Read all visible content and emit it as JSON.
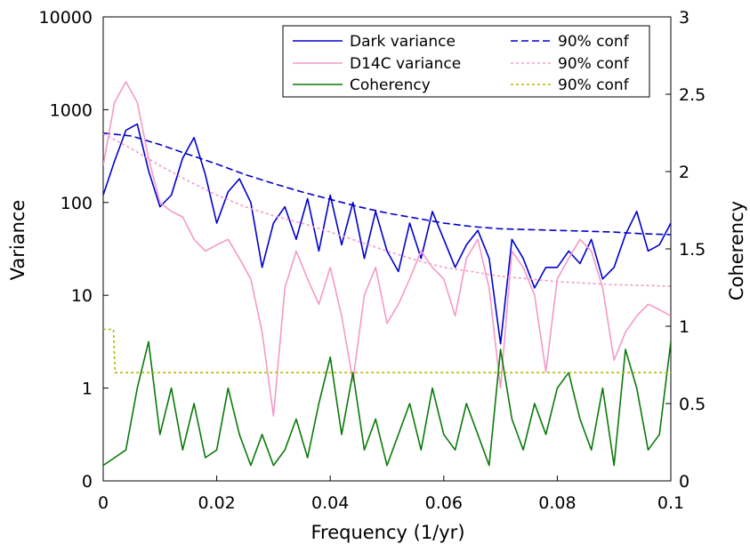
{
  "chart_data": {
    "type": "line",
    "xlabel": "Frequency (1/yr)",
    "ylabel_left": "Variance",
    "ylabel_right": "Coherency",
    "xlim": [
      0,
      0.1
    ],
    "ylim_left": [
      0,
      10000
    ],
    "ylim_right": [
      0,
      3
    ],
    "left_scale": "log (0 shown at bottom)",
    "grid": false,
    "legend_position": "top-right",
    "x_ticks": [
      "0",
      "0.02",
      "0.04",
      "0.06",
      "0.08",
      "0.1"
    ],
    "x_tick_values": [
      0,
      0.02,
      0.04,
      0.06,
      0.08,
      0.1
    ],
    "left_ticks": [
      "0",
      "1",
      "10",
      "100",
      "1000",
      "10000"
    ],
    "right_ticks": [
      "0",
      "0.5",
      "1",
      "1.5",
      "2",
      "2.5",
      "3"
    ],
    "right_tick_values": [
      0,
      0.5,
      1,
      1.5,
      2,
      2.5,
      3
    ],
    "colors": {
      "dark": "#0000cc",
      "d14c": "#f49ac8",
      "coherency": "#0a7a0a",
      "coh_conf": "#b0b800"
    },
    "legend": [
      {
        "label": "Dark variance",
        "style": "solid",
        "color": "#0000cc"
      },
      {
        "label": "90% conf",
        "style": "dashed",
        "color": "#0000cc"
      },
      {
        "label": "D14C variance",
        "style": "solid",
        "color": "#f49ac8"
      },
      {
        "label": "90% conf",
        "style": "dotted",
        "color": "#f49ac8"
      },
      {
        "label": "Coherency",
        "style": "solid",
        "color": "#0a7a0a"
      },
      {
        "label": "90% conf",
        "style": "dotted",
        "color": "#b0b800"
      }
    ],
    "series": [
      {
        "name": "Dark variance",
        "axis": "left",
        "x": [
          0,
          0.002,
          0.004,
          0.006,
          0.008,
          0.01,
          0.012,
          0.014,
          0.016,
          0.018,
          0.02,
          0.022,
          0.024,
          0.026,
          0.028,
          0.03,
          0.032,
          0.034,
          0.036,
          0.038,
          0.04,
          0.042,
          0.044,
          0.046,
          0.048,
          0.05,
          0.052,
          0.054,
          0.056,
          0.058,
          0.06,
          0.062,
          0.064,
          0.066,
          0.068,
          0.07,
          0.072,
          0.074,
          0.076,
          0.078,
          0.08,
          0.082,
          0.084,
          0.086,
          0.088,
          0.09,
          0.092,
          0.094,
          0.096,
          0.098,
          0.1
        ],
        "y": [
          120,
          280,
          600,
          700,
          220,
          90,
          120,
          300,
          500,
          200,
          60,
          130,
          180,
          100,
          20,
          60,
          90,
          40,
          110,
          30,
          120,
          35,
          100,
          25,
          80,
          30,
          18,
          60,
          25,
          80,
          40,
          20,
          35,
          50,
          25,
          3,
          40,
          25,
          12,
          20,
          20,
          30,
          22,
          40,
          15,
          20,
          45,
          80,
          30,
          35,
          60
        ]
      },
      {
        "name": "90% conf",
        "axis": "left",
        "x": [
          0,
          0.005,
          0.01,
          0.015,
          0.02,
          0.025,
          0.03,
          0.035,
          0.04,
          0.045,
          0.05,
          0.055,
          0.06,
          0.065,
          0.07,
          0.075,
          0.08,
          0.085,
          0.09,
          0.095,
          0.1
        ],
        "y": [
          560,
          520,
          420,
          330,
          260,
          200,
          160,
          130,
          108,
          90,
          77,
          68,
          60,
          55,
          52,
          51,
          50,
          49,
          48,
          46,
          45
        ]
      },
      {
        "name": "D14C variance",
        "axis": "left",
        "x": [
          0,
          0.002,
          0.004,
          0.006,
          0.008,
          0.01,
          0.012,
          0.014,
          0.016,
          0.018,
          0.02,
          0.022,
          0.024,
          0.026,
          0.028,
          0.03,
          0.032,
          0.034,
          0.036,
          0.038,
          0.04,
          0.042,
          0.044,
          0.046,
          0.048,
          0.05,
          0.052,
          0.054,
          0.056,
          0.058,
          0.06,
          0.062,
          0.064,
          0.066,
          0.068,
          0.07,
          0.072,
          0.074,
          0.076,
          0.078,
          0.08,
          0.082,
          0.084,
          0.086,
          0.088,
          0.09,
          0.092,
          0.094,
          0.096,
          0.098,
          0.1
        ],
        "y": [
          250,
          1200,
          2000,
          1200,
          300,
          100,
          80,
          70,
          40,
          30,
          35,
          40,
          25,
          15,
          4,
          0.5,
          12,
          30,
          15,
          8,
          20,
          6,
          1.2,
          10,
          20,
          5,
          8,
          15,
          30,
          20,
          15,
          6,
          25,
          40,
          12,
          1,
          30,
          20,
          10,
          1.5,
          15,
          25,
          40,
          30,
          12,
          2,
          4,
          6,
          8,
          7,
          6
        ]
      },
      {
        "name": "90% conf",
        "axis": "left",
        "x": [
          0,
          0.005,
          0.01,
          0.015,
          0.02,
          0.025,
          0.03,
          0.035,
          0.04,
          0.045,
          0.05,
          0.055,
          0.06,
          0.065,
          0.07,
          0.075,
          0.08,
          0.085,
          0.09,
          0.095,
          0.1
        ],
        "y": [
          550,
          380,
          250,
          170,
          120,
          90,
          72,
          60,
          48,
          38,
          30,
          24,
          20,
          18,
          16,
          15,
          14,
          13.5,
          13,
          12.8,
          12.5
        ]
      },
      {
        "name": "Coherency",
        "axis": "right",
        "x": [
          0,
          0.002,
          0.004,
          0.006,
          0.008,
          0.01,
          0.012,
          0.014,
          0.016,
          0.018,
          0.02,
          0.022,
          0.024,
          0.026,
          0.028,
          0.03,
          0.032,
          0.034,
          0.036,
          0.038,
          0.04,
          0.042,
          0.044,
          0.046,
          0.048,
          0.05,
          0.052,
          0.054,
          0.056,
          0.058,
          0.06,
          0.062,
          0.064,
          0.066,
          0.068,
          0.07,
          0.072,
          0.074,
          0.076,
          0.078,
          0.08,
          0.082,
          0.084,
          0.086,
          0.088,
          0.09,
          0.092,
          0.094,
          0.096,
          0.098,
          0.1
        ],
        "y": [
          0.1,
          0.15,
          0.2,
          0.6,
          0.9,
          0.3,
          0.6,
          0.2,
          0.5,
          0.15,
          0.2,
          0.6,
          0.3,
          0.1,
          0.3,
          0.1,
          0.2,
          0.4,
          0.15,
          0.5,
          0.8,
          0.3,
          0.7,
          0.2,
          0.4,
          0.1,
          0.3,
          0.5,
          0.2,
          0.6,
          0.3,
          0.2,
          0.5,
          0.3,
          0.1,
          0.85,
          0.4,
          0.2,
          0.5,
          0.3,
          0.6,
          0.7,
          0.4,
          0.2,
          0.6,
          0.1,
          0.85,
          0.6,
          0.2,
          0.3,
          0.9
        ]
      },
      {
        "name": "90% conf",
        "axis": "right",
        "x": [
          0,
          0.0018,
          0.0021,
          0.1
        ],
        "y": [
          0.98,
          0.98,
          0.7,
          0.7
        ]
      }
    ]
  }
}
